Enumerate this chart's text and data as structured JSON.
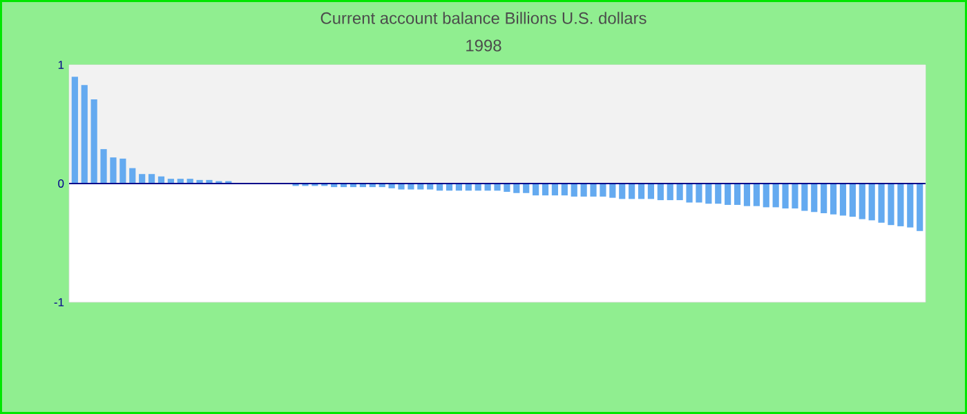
{
  "chart_data": {
    "type": "bar",
    "title": "Current account balance Billions U.S. dollars",
    "subtitle": "1998",
    "categories": [
      null,
      null,
      null,
      null,
      null,
      null,
      null,
      null,
      null,
      null,
      null,
      null,
      null,
      null,
      null,
      null,
      null,
      null,
      null,
      null,
      null,
      null,
      null,
      null,
      null,
      null,
      null,
      null,
      null,
      null,
      null,
      null,
      null,
      null,
      null,
      null,
      null,
      null,
      null,
      null,
      null,
      null,
      null,
      null,
      null,
      null,
      null,
      null,
      null,
      null,
      null,
      null,
      null,
      null,
      null,
      null,
      null,
      null,
      null,
      null,
      null,
      null,
      null,
      null,
      null,
      null,
      null,
      null,
      null,
      null,
      null,
      null,
      null,
      null,
      null,
      null,
      null,
      null,
      null,
      null,
      null,
      null,
      null,
      null,
      null,
      null,
      null,
      null,
      null
    ],
    "values": [
      0.9,
      0.83,
      0.71,
      0.29,
      0.22,
      0.21,
      0.13,
      0.08,
      0.08,
      0.06,
      0.04,
      0.04,
      0.04,
      0.03,
      0.03,
      0.02,
      0.02,
      0,
      0,
      0,
      0,
      0,
      0,
      -0.02,
      -0.02,
      -0.02,
      -0.02,
      -0.03,
      -0.03,
      -0.03,
      -0.03,
      -0.03,
      -0.03,
      -0.04,
      -0.05,
      -0.05,
      -0.05,
      -0.05,
      -0.06,
      -0.06,
      -0.06,
      -0.06,
      -0.06,
      -0.06,
      -0.06,
      -0.07,
      -0.08,
      -0.08,
      -0.1,
      -0.1,
      -0.1,
      -0.1,
      -0.11,
      -0.11,
      -0.11,
      -0.11,
      -0.12,
      -0.13,
      -0.13,
      -0.13,
      -0.13,
      -0.14,
      -0.14,
      -0.14,
      -0.16,
      -0.16,
      -0.17,
      -0.17,
      -0.18,
      -0.18,
      -0.19,
      -0.19,
      -0.2,
      -0.2,
      -0.21,
      -0.21,
      -0.23,
      -0.24,
      -0.25,
      -0.26,
      -0.27,
      -0.28,
      -0.3,
      -0.31,
      -0.33,
      -0.35,
      -0.36,
      -0.37,
      -0.4
    ],
    "color": "#64aaf0",
    "ylim": [
      -1,
      1
    ],
    "yticks": [
      -1,
      0,
      1
    ],
    "tick_labels": "y",
    "bands": [
      {
        "axis": "y",
        "from": 0,
        "to": 1,
        "color": "#f2f2f2"
      }
    ],
    "ref_lines": [
      {
        "axis": "y",
        "value": 0,
        "color": "#00008b"
      }
    ]
  }
}
